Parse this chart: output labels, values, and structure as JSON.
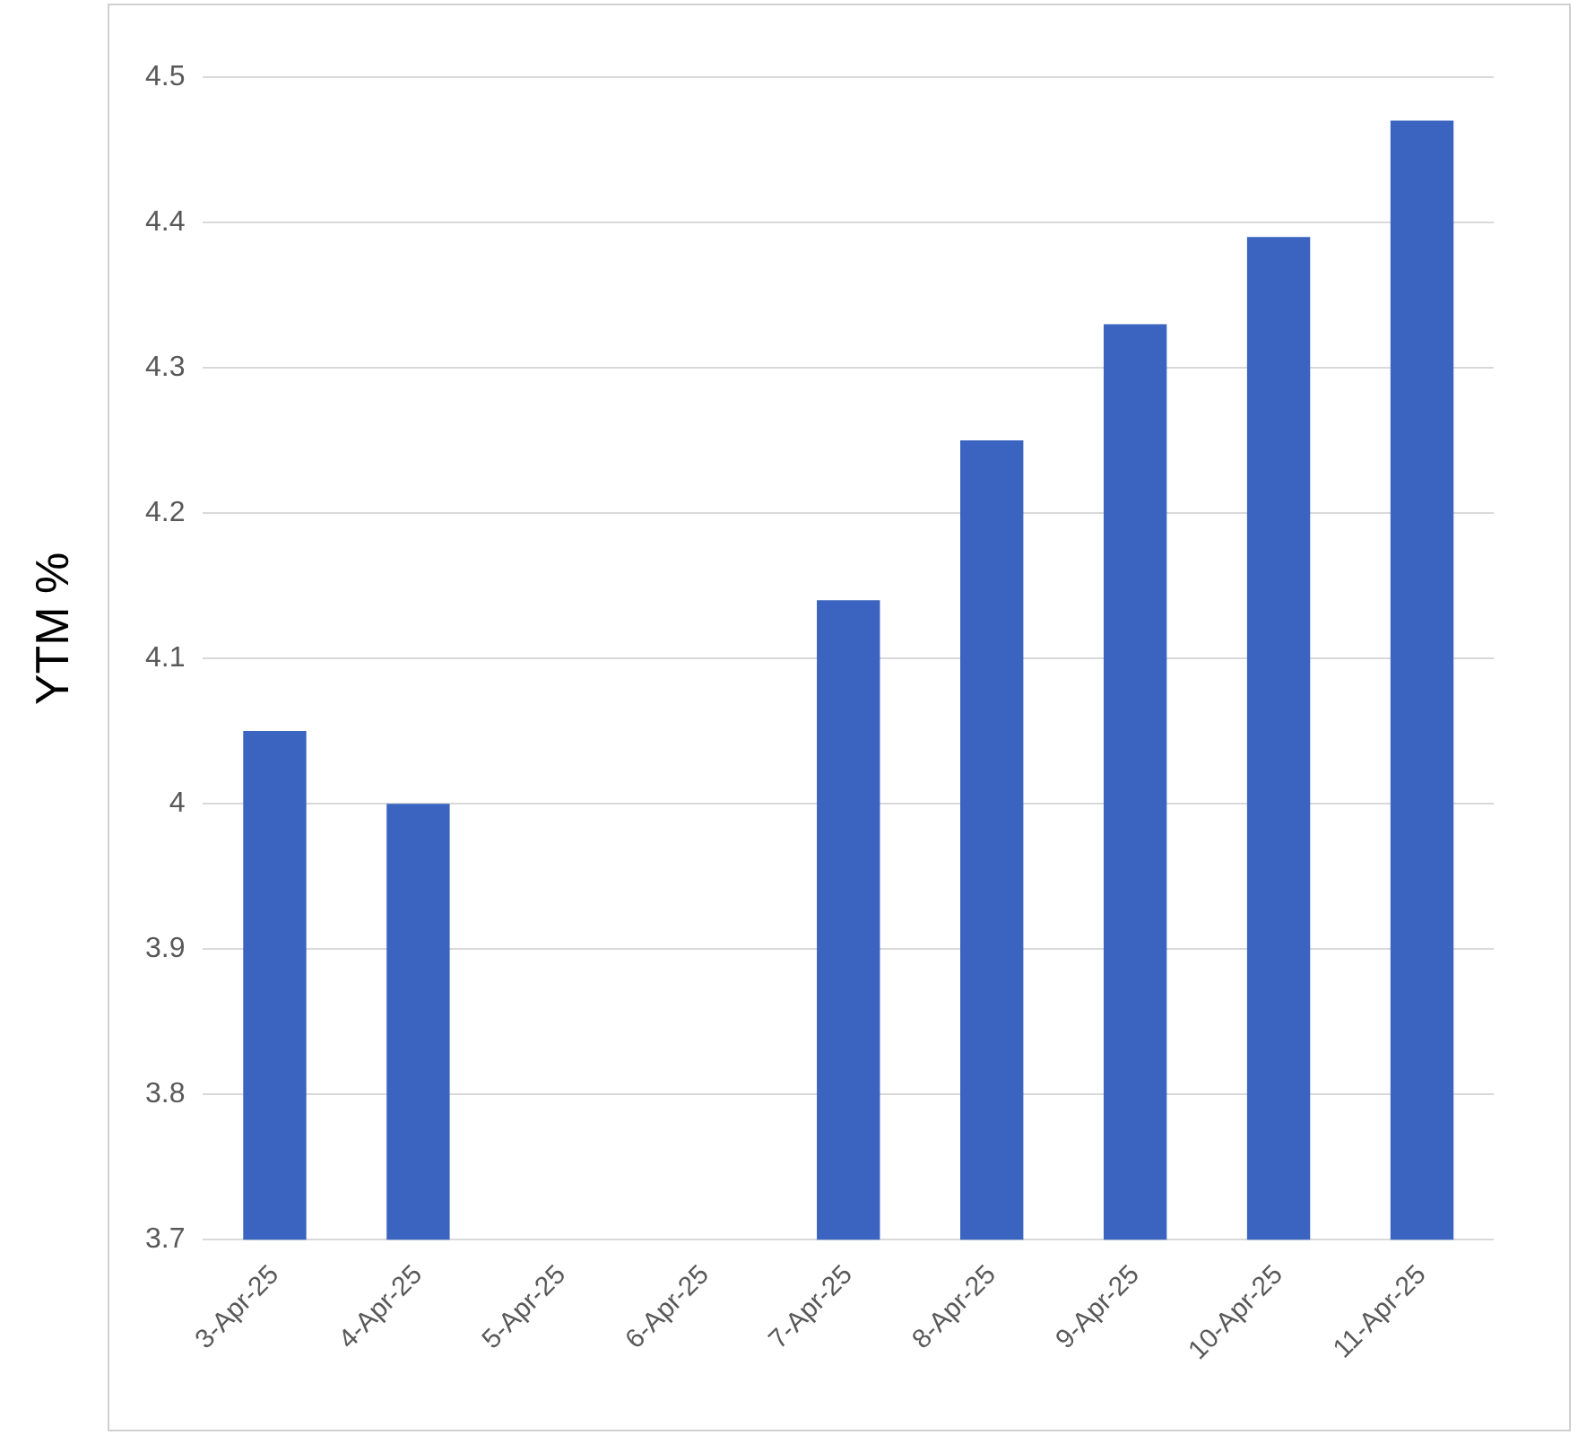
{
  "chart_data": {
    "type": "bar",
    "ylabel": "YTM %",
    "categories": [
      "3-Apr-25",
      "4-Apr-25",
      "5-Apr-25",
      "6-Apr-25",
      "7-Apr-25",
      "8-Apr-25",
      "9-Apr-25",
      "10-Apr-25",
      "11-Apr-25"
    ],
    "values": [
      4.05,
      4.0,
      null,
      null,
      4.14,
      4.25,
      4.33,
      4.39,
      4.47
    ],
    "color": "#3a64c0",
    "ylim": [
      3.7,
      4.5
    ],
    "yticks": [
      3.7,
      3.8,
      3.9,
      4,
      4.1,
      4.2,
      4.3,
      4.4,
      4.5
    ],
    "grid": "y"
  }
}
